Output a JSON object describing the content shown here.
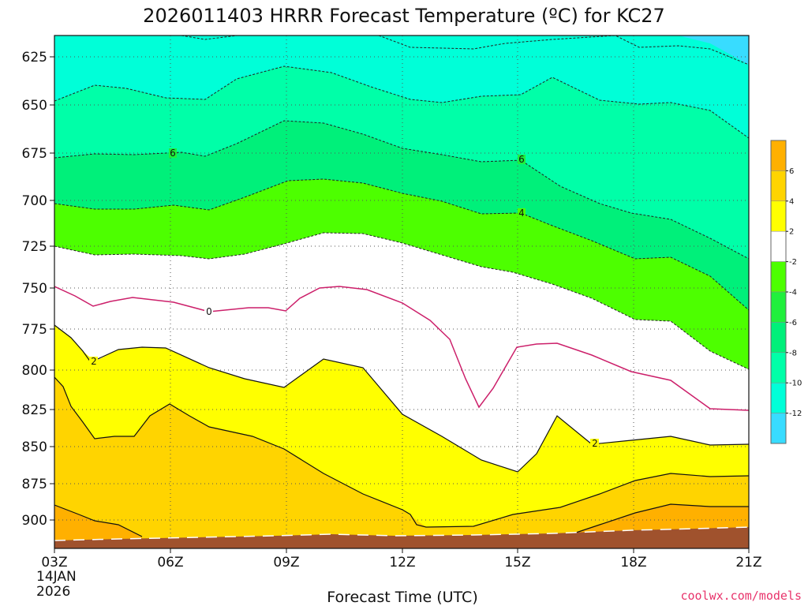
{
  "title": "2026011403 HRRR Forecast Temperature (ºC) for KC27",
  "xlabel": "Forecast Time (UTC)",
  "credit": "coolwx.com/models",
  "colors": {
    "credit": "#e8336b",
    "ground": "#a0522d",
    "zero_line": "#cc1f6a",
    "contour": "#111111"
  },
  "chart_data": {
    "type": "contour",
    "x_ticks": [
      "03Z",
      "06Z",
      "09Z",
      "12Z",
      "15Z",
      "18Z",
      "21Z"
    ],
    "x_start_label": [
      "14JAN",
      "2026"
    ],
    "y_ticks": [
      625,
      650,
      675,
      700,
      725,
      750,
      775,
      800,
      825,
      850,
      875,
      900
    ],
    "y_axis": "pressure (hPa), inverted",
    "grid": true,
    "colorbar": {
      "ticks": [
        "6",
        "4",
        "2",
        "-2",
        "-4",
        "-6",
        "-8",
        "-10",
        "-12"
      ],
      "bins": [
        {
          "range": "> 6",
          "color": "#ffb000"
        },
        {
          "range": "4 to 6",
          "color": "#ffd400"
        },
        {
          "range": "2 to 4",
          "color": "#ffff00"
        },
        {
          "range": "-2 to 2",
          "color": "#ffffff"
        },
        {
          "range": "-4 to -2",
          "color": "#4dff00"
        },
        {
          "range": "-6 to -4",
          "color": "#20f03c"
        },
        {
          "range": "-8 to -6",
          "color": "#00f07a"
        },
        {
          "range": "-10 to -8",
          "color": "#00ffa8"
        },
        {
          "range": "-12 to -10",
          "color": "#00ffd8"
        },
        {
          "range": "< -12",
          "color": "#38dcff"
        }
      ]
    },
    "contour_labels": [
      {
        "text": "6",
        "x_hour": 6.1,
        "pressure": 675
      },
      {
        "text": "6",
        "x_hour": 15.2,
        "pressure": 679
      },
      {
        "text": "4",
        "x_hour": 15.2,
        "pressure": 707
      },
      {
        "text": "0",
        "x_hour": 7.0,
        "pressure": 763
      },
      {
        "text": "2",
        "x_hour": 4.0,
        "pressure": 795
      },
      {
        "text": "2",
        "x_hour": 17.0,
        "pressure": 847
      }
    ]
  }
}
